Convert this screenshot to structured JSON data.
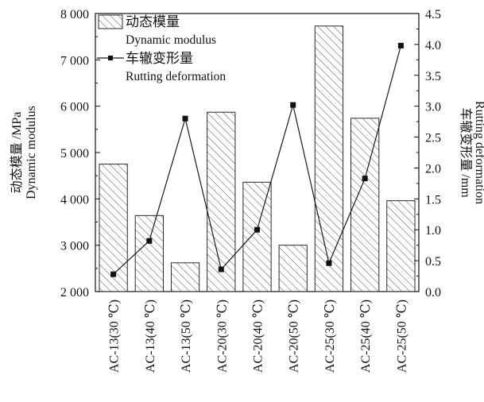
{
  "chart_data": {
    "type": "bar+line",
    "categories": [
      "AC-13(30 ℃)",
      "AC-13(40 ℃)",
      "AC-13(50 ℃)",
      "AC-20(30 ℃)",
      "AC-20(40 ℃)",
      "AC-20(50 ℃)",
      "AC-25(30 ℃)",
      "AC-25(40 ℃)",
      "AC-25(50 ℃)"
    ],
    "series": [
      {
        "name": "动态模量",
        "name_en": "Dynamic modulus",
        "kind": "bar",
        "axis": "left",
        "pattern": "diagonal-hatch",
        "values": [
          4750,
          3640,
          2620,
          5870,
          4360,
          3000,
          7730,
          5740,
          3960
        ]
      },
      {
        "name": "车辙变形量",
        "name_en": "Rutting deformation",
        "kind": "line",
        "axis": "right",
        "marker": "square",
        "values": [
          0.28,
          0.82,
          2.8,
          0.36,
          1.0,
          3.02,
          0.46,
          1.83,
          3.98
        ]
      }
    ],
    "left_axis": {
      "title_cn": "动态模量 /MPa",
      "title_en": "Dynamic modulus",
      "range": [
        2000,
        8000
      ],
      "ticks": [
        2000,
        3000,
        4000,
        5000,
        6000,
        7000,
        8000
      ],
      "tick_labels": [
        "2 000",
        "3 000",
        "4 000",
        "5 000",
        "6 000",
        "7 000",
        "8 000"
      ]
    },
    "right_axis": {
      "title_cn": "车辙变形量 /mm",
      "title_en": "Rutting deformation",
      "range": [
        0.0,
        4.5
      ],
      "ticks": [
        0.0,
        0.5,
        1.0,
        1.5,
        2.0,
        2.5,
        3.0,
        3.5,
        4.0,
        4.5
      ],
      "tick_labels": [
        "0.0",
        "0.5",
        "1.0",
        "1.5",
        "2.0",
        "2.5",
        "3.0",
        "3.5",
        "4.0",
        "4.5"
      ]
    },
    "legend": {
      "placement": "top-left",
      "entries": [
        {
          "cn": "动态模量",
          "en": "Dynamic modulus"
        },
        {
          "cn": "车辙变形量",
          "en": "Rutting deformation"
        }
      ]
    },
    "grid": false,
    "colors": {
      "bar_stroke": "#2a2a2a",
      "hatch": "#555555",
      "line": "#1a1a1a",
      "marker": "#111111",
      "axis": "#111111"
    }
  }
}
